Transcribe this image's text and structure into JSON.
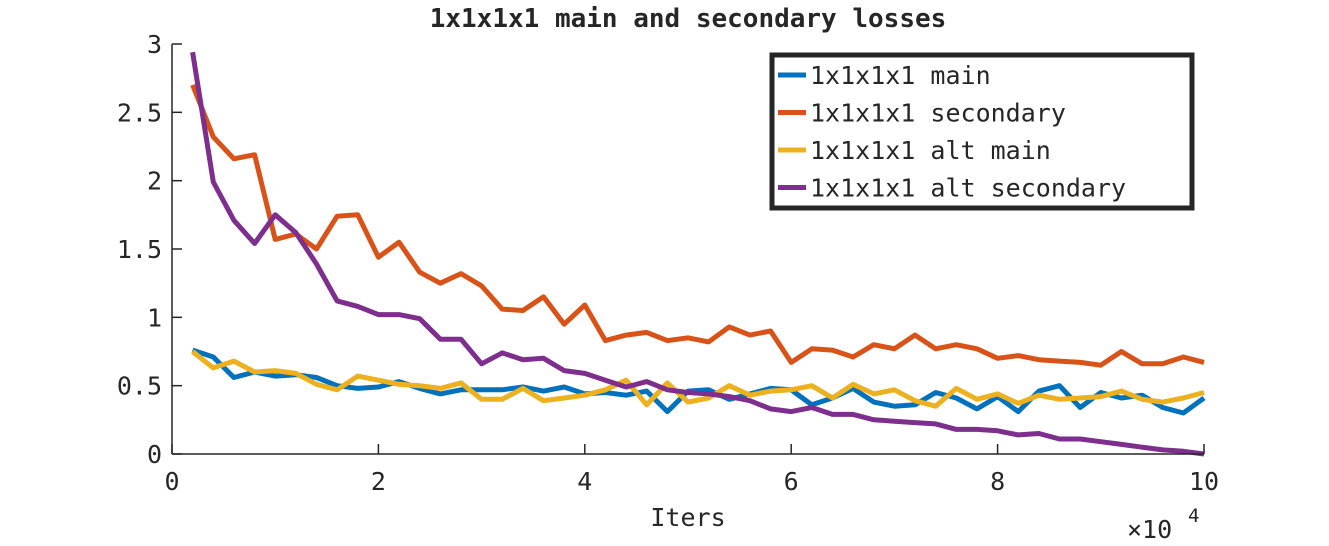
{
  "chart_data": {
    "type": "line",
    "title": "1x1x1x1 main and secondary losses",
    "xlabel": "Iters",
    "ylabel": "",
    "x_exponent_label": "×10",
    "x_exponent_power": "4",
    "xlim": [
      0,
      10
    ],
    "ylim": [
      0,
      3
    ],
    "xticks": [
      0,
      2,
      4,
      6,
      8,
      10
    ],
    "yticks": [
      0,
      0.5,
      1,
      1.5,
      2,
      2.5,
      3
    ],
    "xtick_labels": [
      "0",
      "2",
      "4",
      "6",
      "8",
      "10"
    ],
    "ytick_labels": [
      "0",
      "0.5",
      "1",
      "1.5",
      "2",
      "2.5",
      "3"
    ],
    "grid": false,
    "legend_position": "top-right",
    "x": [
      0.2,
      0.4,
      0.6,
      0.8,
      1.0,
      1.2,
      1.4,
      1.6,
      1.8,
      2.0,
      2.2,
      2.4,
      2.6,
      2.8,
      3.0,
      3.2,
      3.4,
      3.6,
      3.8,
      4.0,
      4.2,
      4.4,
      4.6,
      4.8,
      5.0,
      5.2,
      5.4,
      5.6,
      5.8,
      6.0,
      6.2,
      6.4,
      6.6,
      6.8,
      7.0,
      7.2,
      7.4,
      7.6,
      7.8,
      8.0,
      8.2,
      8.4,
      8.6,
      8.8,
      9.0,
      9.2,
      9.4,
      9.6,
      9.8,
      10.0
    ],
    "series": [
      {
        "name": "1x1x1x1 main",
        "color": "#0072BD",
        "values": [
          0.76,
          0.71,
          0.56,
          0.6,
          0.57,
          0.58,
          0.56,
          0.5,
          0.48,
          0.49,
          0.53,
          0.48,
          0.44,
          0.47,
          0.47,
          0.47,
          0.49,
          0.46,
          0.49,
          0.44,
          0.45,
          0.43,
          0.46,
          0.31,
          0.46,
          0.47,
          0.4,
          0.44,
          0.48,
          0.47,
          0.36,
          0.41,
          0.48,
          0.38,
          0.35,
          0.36,
          0.45,
          0.41,
          0.33,
          0.42,
          0.31,
          0.46,
          0.5,
          0.34,
          0.45,
          0.41,
          0.43,
          0.34,
          0.3,
          0.41
        ]
      },
      {
        "name": "1x1x1x1 secondary",
        "color": "#D95319",
        "values": [
          2.7,
          2.32,
          2.16,
          2.19,
          1.57,
          1.61,
          1.5,
          1.74,
          1.75,
          1.44,
          1.55,
          1.33,
          1.25,
          1.32,
          1.23,
          1.06,
          1.05,
          1.15,
          0.95,
          1.09,
          0.83,
          0.87,
          0.89,
          0.83,
          0.85,
          0.82,
          0.93,
          0.87,
          0.9,
          0.67,
          0.77,
          0.76,
          0.71,
          0.8,
          0.77,
          0.87,
          0.77,
          0.8,
          0.77,
          0.7,
          0.72,
          0.69,
          0.68,
          0.67,
          0.65,
          0.75,
          0.66,
          0.66,
          0.71,
          0.67
        ]
      },
      {
        "name": "1x1x1x1 alt main",
        "color": "#EDB120",
        "values": [
          0.75,
          0.63,
          0.68,
          0.6,
          0.61,
          0.59,
          0.51,
          0.47,
          0.57,
          0.54,
          0.51,
          0.5,
          0.48,
          0.52,
          0.4,
          0.4,
          0.48,
          0.39,
          0.41,
          0.43,
          0.47,
          0.54,
          0.36,
          0.52,
          0.38,
          0.41,
          0.5,
          0.43,
          0.46,
          0.47,
          0.5,
          0.41,
          0.51,
          0.44,
          0.47,
          0.39,
          0.35,
          0.48,
          0.4,
          0.44,
          0.37,
          0.43,
          0.4,
          0.41,
          0.42,
          0.46,
          0.4,
          0.38,
          0.41,
          0.45
        ]
      },
      {
        "name": "1x1x1x1 alt secondary",
        "color": "#7E2F8E",
        "values": [
          2.94,
          1.99,
          1.71,
          1.54,
          1.75,
          1.62,
          1.39,
          1.12,
          1.08,
          1.02,
          1.02,
          0.99,
          0.84,
          0.84,
          0.66,
          0.74,
          0.69,
          0.7,
          0.61,
          0.59,
          0.54,
          0.49,
          0.53,
          0.47,
          0.45,
          0.44,
          0.42,
          0.39,
          0.33,
          0.31,
          0.34,
          0.29,
          0.29,
          0.25,
          0.24,
          0.23,
          0.22,
          0.18,
          0.18,
          0.17,
          0.14,
          0.15,
          0.11,
          0.11,
          0.09,
          0.07,
          0.05,
          0.03,
          0.02,
          0.0
        ]
      }
    ]
  }
}
